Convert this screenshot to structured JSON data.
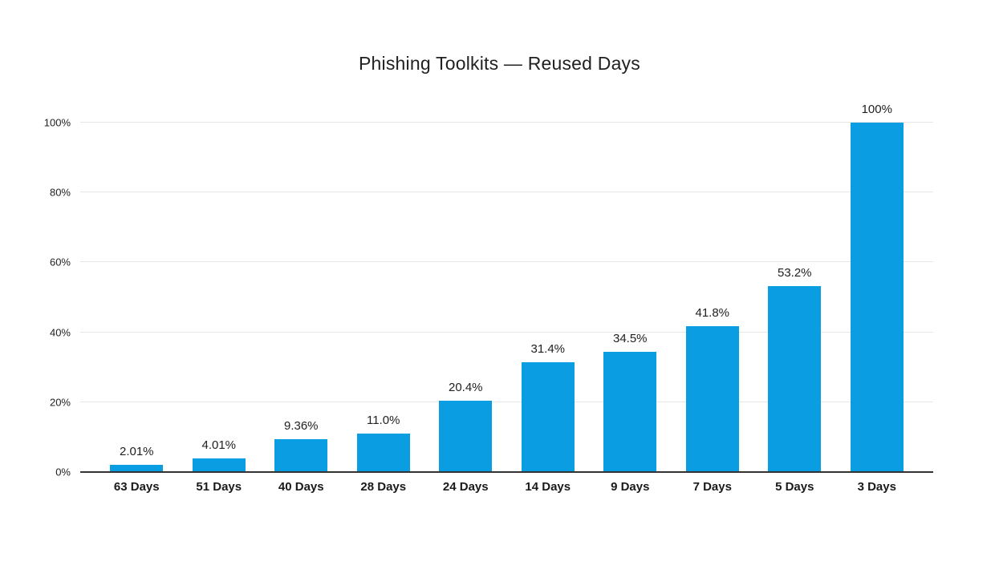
{
  "title": "Phishing Toolkits — Reused Days",
  "chart_data": {
    "type": "bar",
    "title": "Phishing Toolkits — Reused Days",
    "xlabel": "",
    "ylabel": "",
    "categories": [
      "63 Days",
      "51 Days",
      "40 Days",
      "28 Days",
      "24 Days",
      "14 Days",
      "9 Days",
      "7 Days",
      "5 Days",
      "3 Days"
    ],
    "values": [
      2.01,
      4.01,
      9.36,
      11.0,
      20.4,
      31.4,
      34.5,
      41.8,
      53.2,
      100
    ],
    "value_labels": [
      "2.01%",
      "4.01%",
      "9.36%",
      "11.0%",
      "20.4%",
      "31.4%",
      "34.5%",
      "41.8%",
      "53.2%",
      "100%"
    ],
    "yticks": [
      0,
      20,
      40,
      60,
      80,
      100
    ],
    "ytick_labels": [
      "0%",
      "20%",
      "40%",
      "60%",
      "80%",
      "100%"
    ],
    "ylim": [
      0,
      100
    ],
    "grid": true,
    "legend_position": "none",
    "colors": {
      "bar": "#0a9de2",
      "gridline": "#e6e6e6",
      "axis_line": "#333333",
      "text": "#212121"
    }
  }
}
